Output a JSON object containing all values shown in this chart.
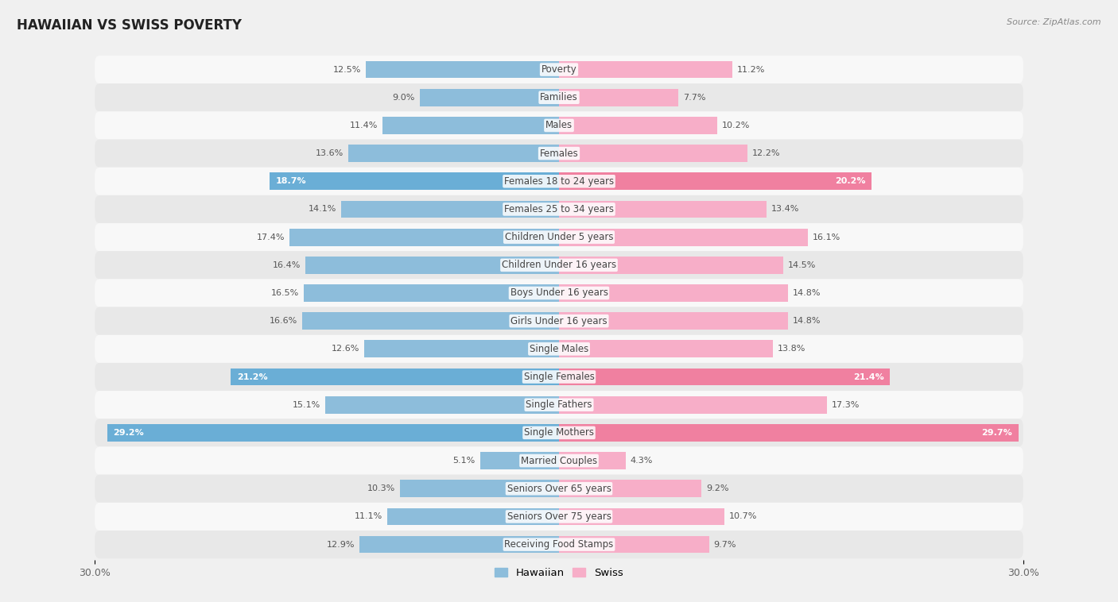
{
  "title": "HAWAIIAN VS SWISS POVERTY",
  "source": "Source: ZipAtlas.com",
  "categories": [
    "Poverty",
    "Families",
    "Males",
    "Females",
    "Females 18 to 24 years",
    "Females 25 to 34 years",
    "Children Under 5 years",
    "Children Under 16 years",
    "Boys Under 16 years",
    "Girls Under 16 years",
    "Single Males",
    "Single Females",
    "Single Fathers",
    "Single Mothers",
    "Married Couples",
    "Seniors Over 65 years",
    "Seniors Over 75 years",
    "Receiving Food Stamps"
  ],
  "hawaiian": [
    12.5,
    9.0,
    11.4,
    13.6,
    18.7,
    14.1,
    17.4,
    16.4,
    16.5,
    16.6,
    12.6,
    21.2,
    15.1,
    29.2,
    5.1,
    10.3,
    11.1,
    12.9
  ],
  "swiss": [
    11.2,
    7.7,
    10.2,
    12.2,
    20.2,
    13.4,
    16.1,
    14.5,
    14.8,
    14.8,
    13.8,
    21.4,
    17.3,
    29.7,
    4.3,
    9.2,
    10.7,
    9.7
  ],
  "hawaiian_color_default": "#8dbddb",
  "hawaiian_color_highlight": "#6aaed6",
  "swiss_color_default": "#f7aec8",
  "swiss_color_highlight": "#f080a0",
  "highlight_rows": [
    4,
    11,
    13
  ],
  "axis_max": 30.0,
  "axis_label": "30.0%",
  "background_color": "#f0f0f0",
  "row_bg_odd": "#f8f8f8",
  "row_bg_even": "#e8e8e8",
  "bar_height": 0.62,
  "title_fontsize": 12,
  "label_fontsize": 8.5,
  "value_fontsize": 8.0,
  "legend_labels": [
    "Hawaiian",
    "Swiss"
  ]
}
